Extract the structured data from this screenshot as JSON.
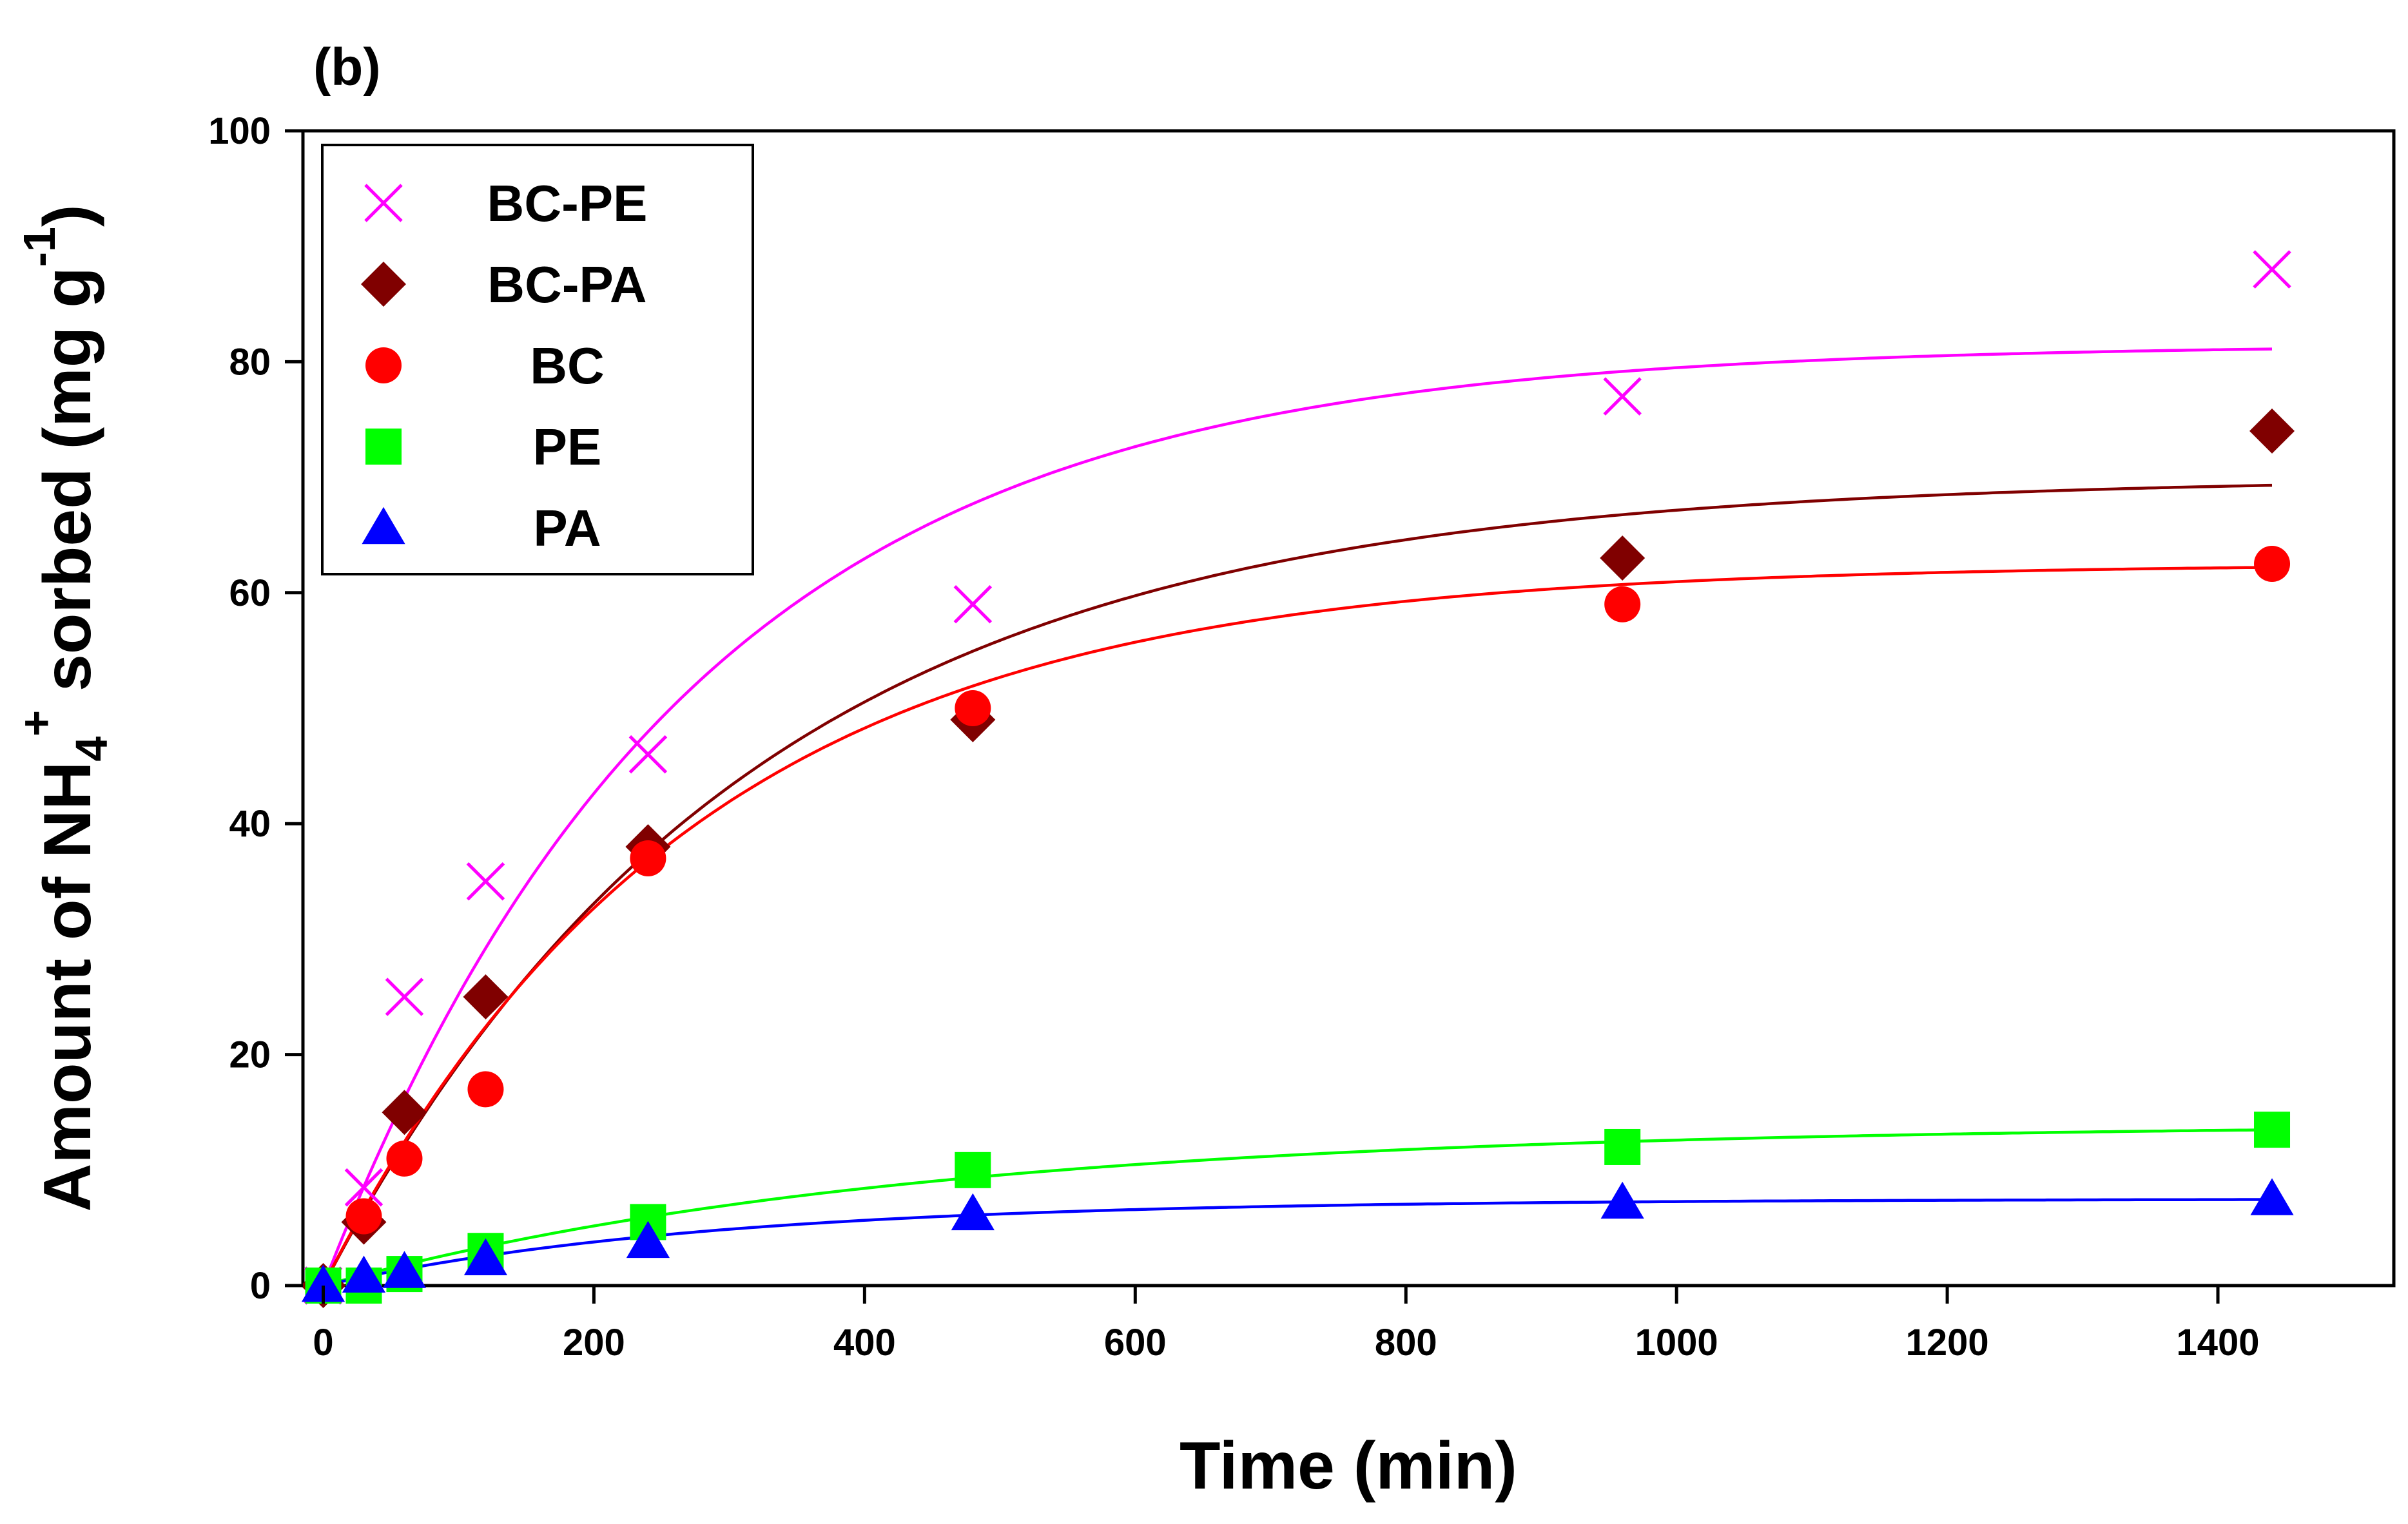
{
  "panel_label": "(b)",
  "chart_data": {
    "type": "scatter",
    "title": "",
    "xlabel": "Time (min)",
    "ylabel": {
      "prefix": "Amount of NH",
      "subscript": "4",
      "superscript": "+",
      "middle": " sorbed (mg g",
      "exponent": "-1",
      "suffix": ")"
    },
    "xlim": [
      -15,
      1530
    ],
    "ylim": [
      0,
      100
    ],
    "xticks": [
      0,
      200,
      400,
      600,
      800,
      1000,
      1200,
      1400
    ],
    "yticks": [
      0,
      20,
      40,
      60,
      80,
      100
    ],
    "grid": false,
    "legend_position": "top-left",
    "series": [
      {
        "name": "BC-PE",
        "marker": "x",
        "color": "#FF00FF",
        "x": [
          0,
          30,
          60,
          120,
          240,
          480,
          960,
          1440
        ],
        "y": [
          0,
          8.5,
          25,
          35,
          46,
          59,
          77,
          88
        ],
        "fit": {
          "qe": 81.5,
          "k": 0.0037
        }
      },
      {
        "name": "BC-PA",
        "marker": "diamond",
        "color": "#800000",
        "x": [
          0,
          30,
          60,
          120,
          240,
          480,
          960,
          1440
        ],
        "y": [
          0,
          5.5,
          15,
          25,
          38,
          49,
          63,
          74
        ],
        "fit": {
          "qe": 70,
          "k": 0.0032
        }
      },
      {
        "name": "BC",
        "marker": "circle",
        "color": "#FF0000",
        "x": [
          0,
          30,
          60,
          120,
          240,
          480,
          960,
          1440
        ],
        "y": [
          0,
          6,
          11,
          17,
          37,
          50,
          59,
          62.5
        ],
        "fit": {
          "qe": 62.5,
          "k": 0.0037
        }
      },
      {
        "name": "PE",
        "marker": "square",
        "color": "#00FF00",
        "x": [
          0,
          30,
          60,
          120,
          240,
          480,
          960,
          1440
        ],
        "y": [
          0,
          0,
          1,
          3,
          5.5,
          10,
          12,
          13.5
        ],
        "fit": {
          "qe": 14,
          "k": 0.0023
        }
      },
      {
        "name": "PA",
        "marker": "triangle",
        "color": "#0000FF",
        "x": [
          0,
          30,
          60,
          120,
          240,
          480,
          960,
          1440
        ],
        "y": [
          0,
          0.8,
          1.2,
          2.3,
          3.8,
          6.2,
          7.2,
          7.5
        ],
        "fit": {
          "qe": 7.5,
          "k": 0.0035
        }
      }
    ]
  }
}
